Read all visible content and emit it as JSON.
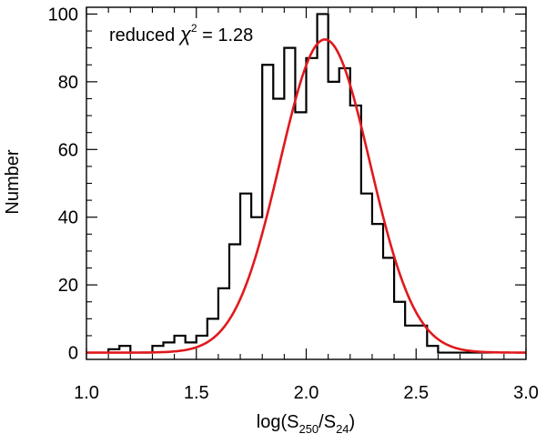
{
  "chart_data": {
    "type": "histogram",
    "xlabel_main": "log(S",
    "xlabel_sub1": "250",
    "xlabel_mid": "/S",
    "xlabel_sub2": "24",
    "xlabel_end": ")",
    "ylabel": "Number",
    "annotation_prefix": "reduced ",
    "annotation_symbol": "χ",
    "annotation_sup": "2",
    "annotation_suffix": " = 1.28",
    "xlim": [
      1.0,
      3.0
    ],
    "ylim": [
      -2,
      102
    ],
    "xticks": [
      1.0,
      1.5,
      2.0,
      2.5,
      3.0
    ],
    "xtick_labels": [
      "1.0",
      "1.5",
      "2.0",
      "2.5",
      "3.0"
    ],
    "yticks": [
      0,
      20,
      40,
      60,
      80,
      100
    ],
    "ytick_labels": [
      "0",
      "20",
      "40",
      "60",
      "80",
      "100"
    ],
    "bin_width": 0.05,
    "bin_starts": [
      1.1,
      1.15,
      1.2,
      1.25,
      1.3,
      1.35,
      1.4,
      1.45,
      1.5,
      1.55,
      1.6,
      1.65,
      1.7,
      1.75,
      1.8,
      1.85,
      1.9,
      1.95,
      2.0,
      2.05,
      2.1,
      2.15,
      2.2,
      2.25,
      2.3,
      2.35,
      2.4,
      2.45,
      2.5,
      2.55,
      2.6,
      2.65,
      2.7,
      2.75,
      2.8
    ],
    "counts": [
      1,
      2,
      0,
      0,
      2,
      3,
      5,
      3,
      5,
      10,
      19,
      32,
      47,
      40,
      85,
      75,
      90,
      71,
      87,
      100,
      80,
      84,
      73,
      47,
      38,
      28,
      15,
      8,
      8,
      2,
      0,
      0,
      0,
      0,
      0
    ],
    "series": [
      {
        "name": "Histogram",
        "color": "#000000"
      },
      {
        "name": "Gaussian fit",
        "color": "#e0191c",
        "amplitude": 92.5,
        "mean": 2.085,
        "sigma": 0.205
      }
    ]
  }
}
